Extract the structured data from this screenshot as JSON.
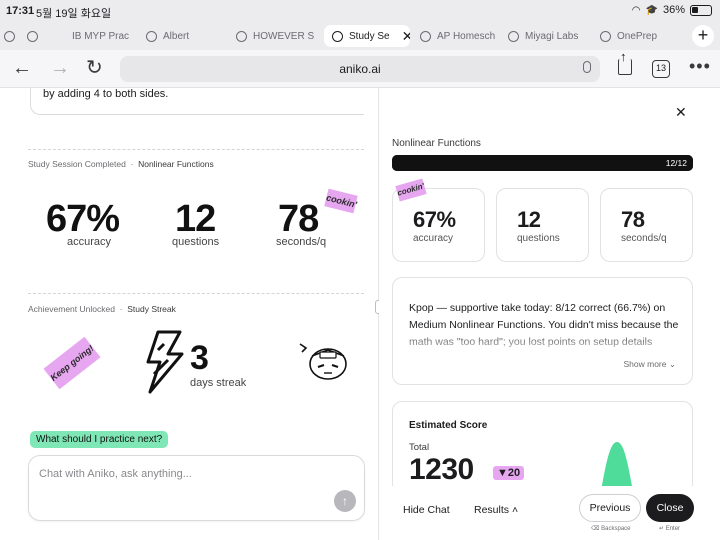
{
  "status_bar": {
    "time": "17:31",
    "date": "5월 19일 화요일",
    "battery": "36%"
  },
  "tabs": [
    {
      "label": ""
    },
    {
      "label": ""
    },
    {
      "label": "IB MYP Prac"
    },
    {
      "label": "Albert"
    },
    {
      "label": "HOWEVER S"
    },
    {
      "label": "Study Se",
      "active": true
    },
    {
      "label": "AP Homesch"
    },
    {
      "label": "Miyagi Labs"
    },
    {
      "label": "OnePrep"
    }
  ],
  "browser": {
    "url": "aniko.ai",
    "tab_count": "13"
  },
  "left": {
    "prev_text": "by adding 4 to both sides.",
    "session": {
      "kind": "Study Session Completed",
      "topic": "Nonlinear Functions",
      "accuracy": "67%",
      "accuracy_label": "accuracy",
      "questions": "12",
      "questions_label": "questions",
      "seconds": "78",
      "seconds_label": "seconds/q",
      "sticker": "cookin'"
    },
    "achievement": {
      "kind": "Achievement Unlocked",
      "name": "Study Streak",
      "sticker": "Keep going!",
      "streak": "3",
      "streak_label": "days streak"
    },
    "suggestion": "What should I practice next?",
    "chat_placeholder": "Chat with Aniko, ask anything..."
  },
  "right": {
    "title": "Nonlinear Functions",
    "progress_text": "12/12",
    "progress_fraction": 1.0,
    "sticker": "cookin'",
    "stats": [
      {
        "value": "67%",
        "label": "accuracy"
      },
      {
        "value": "12",
        "label": "questions"
      },
      {
        "value": "78",
        "label": "seconds/q"
      }
    ],
    "coach_text": "Kpop — supportive take today: 8/12 correct (66.7%) on Medium Nonlinear Functions. You didn't miss because the math was \"too hard\"; you lost points on setup details",
    "show_more": "Show more",
    "estimated": {
      "heading": "Estimated Score",
      "total_label": "Total",
      "score": "1230",
      "delta": "▼20"
    },
    "bottom": {
      "hide_chat": "Hide Chat",
      "results": "Results",
      "previous": "Previous",
      "close": "Close",
      "hint_prev": "Backspace",
      "hint_close": "Enter"
    }
  },
  "colors": {
    "accent_pink": "#e6a7f0",
    "accent_green": "#7fe7b6",
    "dark": "#1c1c1e"
  }
}
